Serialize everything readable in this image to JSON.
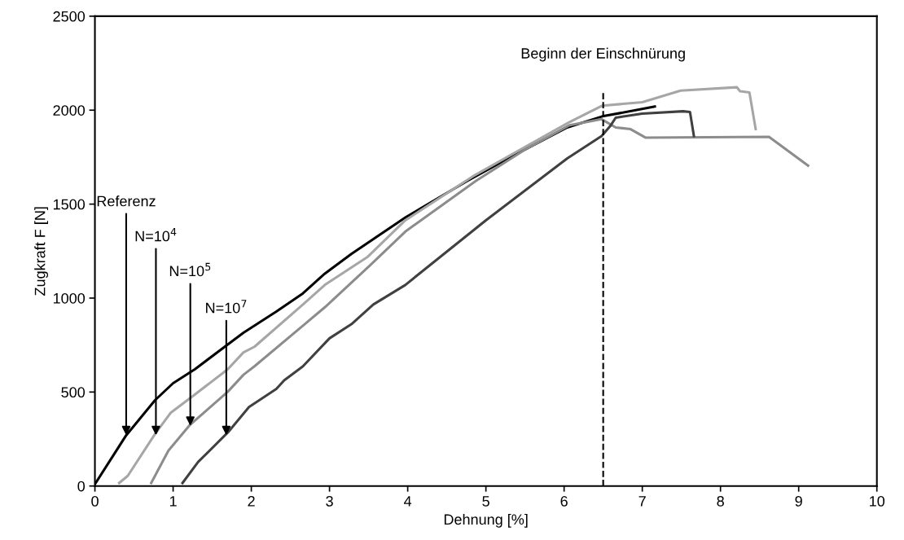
{
  "chart_data": {
    "type": "line",
    "xlabel": "Dehnung [%]",
    "ylabel": "Zugkraft F [N]",
    "xlim": [
      0,
      10
    ],
    "xticks": [
      0,
      1,
      2,
      3,
      4,
      5,
      6,
      7,
      8,
      9,
      10
    ],
    "ylim": [
      0,
      2500
    ],
    "yticks": [
      0,
      500,
      1000,
      1500,
      2000,
      2500
    ],
    "grid": false,
    "marker": "none",
    "line_style": "solid",
    "series": [
      {
        "color": "#000000",
        "x": [
          0.0,
          0.32,
          0.4,
          0.77,
          1.0,
          1.28,
          1.66,
          1.9,
          2.32,
          2.66,
          2.94,
          3.28,
          3.97,
          4.76,
          5.35,
          6.04,
          6.49,
          7.16
        ],
        "values": [
          10,
          218,
          270,
          457,
          547,
          622,
          741,
          816,
          928,
          1025,
          1130,
          1235,
          1429,
          1623,
          1758,
          1908,
          1967,
          2019
        ]
      },
      {
        "color": "#a6a6a6",
        "x": [
          0.31,
          0.42,
          0.77,
          0.97,
          1.28,
          1.7,
          1.9,
          2.04,
          2.66,
          2.94,
          3.49,
          3.97,
          4.83,
          6.07,
          6.49,
          7.0,
          7.49,
          8.21,
          8.25,
          8.37,
          8.45
        ],
        "values": [
          16,
          54,
          278,
          390,
          487,
          622,
          711,
          741,
          966,
          1070,
          1220,
          1414,
          1647,
          1937,
          2024,
          2042,
          2104,
          2122,
          2101,
          2094,
          1899
        ]
      },
      {
        "color": "#8c8c8c",
        "x": [
          0.72,
          0.94,
          1.21,
          1.7,
          1.9,
          2.04,
          2.66,
          2.94,
          3.52,
          3.97,
          4.87,
          5.5,
          6.07,
          6.48,
          6.66,
          6.85,
          7.04,
          8.62,
          9.12
        ],
        "values": [
          16,
          188,
          323,
          502,
          592,
          637,
          853,
          951,
          1175,
          1354,
          1623,
          1790,
          1920,
          1952,
          1908,
          1899,
          1854,
          1858,
          1705
        ]
      },
      {
        "color": "#404040",
        "x": [
          1.12,
          1.32,
          1.7,
          1.97,
          2.32,
          2.42,
          2.66,
          3.0,
          3.28,
          3.56,
          3.97,
          5.0,
          6.04,
          6.48,
          6.59,
          6.66,
          7.0,
          7.52,
          7.61,
          7.66
        ],
        "values": [
          16,
          128,
          285,
          420,
          517,
          562,
          637,
          786,
          861,
          966,
          1070,
          1414,
          1743,
          1862,
          1915,
          1960,
          1982,
          1994,
          1990,
          1862
        ]
      }
    ],
    "ref_lines": [
      {
        "axis": "x",
        "value": 6.5,
        "label": "Beginn der Einschnürung",
        "color": "#000000",
        "line_style": "dashed"
      }
    ],
    "annotations": [
      {
        "text": "Referenz",
        "x": 0.4,
        "y": 270
      },
      {
        "text": "N=10$^{4}$",
        "x": 0.78,
        "y": 270
      },
      {
        "text": "N=10$^{5}$",
        "x": 1.22,
        "y": 320
      },
      {
        "text": "N=10$^{7}$",
        "x": 1.68,
        "y": 270
      }
    ]
  }
}
